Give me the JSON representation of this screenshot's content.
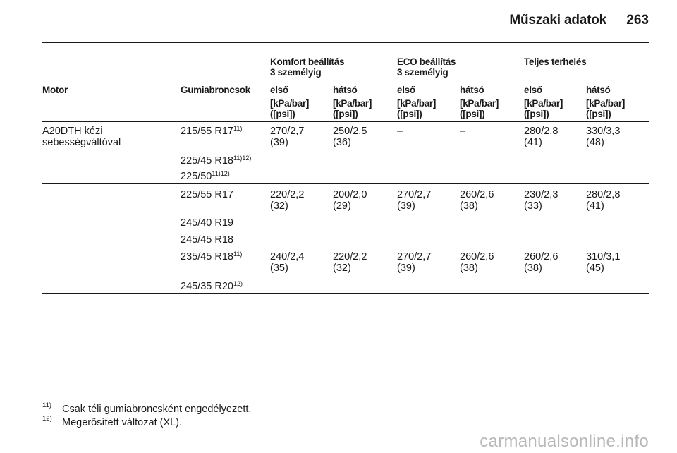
{
  "header": {
    "title": "Műszaki adatok",
    "page_number": "263"
  },
  "table": {
    "group_headers": [
      {
        "line1": "Komfort beállítás",
        "line2": "3 személyig"
      },
      {
        "line1": "ECO beállítás",
        "line2": "3 személyig"
      },
      {
        "line1": "Teljes terhelés",
        "line2": ""
      }
    ],
    "col_motor": "Motor",
    "col_tyres": "Gumiabroncsok",
    "col_front": "első",
    "col_rear": "hátsó",
    "unit_line1": "[kPa/bar]",
    "unit_line2": "([psi])",
    "motor_name_line1": "A20DTH kézi",
    "motor_name_line2": "sebességváltóval",
    "groups": [
      {
        "tyres": [
          {
            "size": "215/55 R17",
            "sup": "11)"
          },
          {
            "size": "225/45 R18",
            "sup": "11)12)"
          },
          {
            "size": "225/50",
            "sup": "11)12)"
          }
        ],
        "values": [
          {
            "bar": "270/2,7",
            "psi": "(39)"
          },
          {
            "bar": "250/2,5",
            "psi": "(36)"
          },
          {
            "bar": "–",
            "psi": ""
          },
          {
            "bar": "–",
            "psi": ""
          },
          {
            "bar": "280/2,8",
            "psi": "(41)"
          },
          {
            "bar": "330/3,3",
            "psi": "(48)"
          }
        ]
      },
      {
        "tyres": [
          {
            "size": "225/55 R17",
            "sup": ""
          },
          {
            "size": "245/40 R19",
            "sup": ""
          },
          {
            "size": "245/45 R18",
            "sup": ""
          }
        ],
        "values": [
          {
            "bar": "220/2,2",
            "psi": "(32)"
          },
          {
            "bar": "200/2,0",
            "psi": "(29)"
          },
          {
            "bar": "270/2,7",
            "psi": "(39)"
          },
          {
            "bar": "260/2,6",
            "psi": "(38)"
          },
          {
            "bar": "230/2,3",
            "psi": "(33)"
          },
          {
            "bar": "280/2,8",
            "psi": "(41)"
          }
        ]
      },
      {
        "tyres": [
          {
            "size": "235/45 R18",
            "sup": "11)"
          },
          {
            "size": "245/35 R20",
            "sup": "12)"
          }
        ],
        "values": [
          {
            "bar": "240/2,4",
            "psi": "(35)"
          },
          {
            "bar": "220/2,2",
            "psi": "(32)"
          },
          {
            "bar": "270/2,7",
            "psi": "(39)"
          },
          {
            "bar": "260/2,6",
            "psi": "(38)"
          },
          {
            "bar": "260/2,6",
            "psi": "(38)"
          },
          {
            "bar": "310/3,1",
            "psi": "(45)"
          }
        ]
      }
    ]
  },
  "footnotes": [
    {
      "mark": "11)",
      "text": "Csak téli gumiabroncsként engedélyezett."
    },
    {
      "mark": "12)",
      "text": "Megerősített változat (XL)."
    }
  ],
  "watermark": "carmanualsonline.info"
}
